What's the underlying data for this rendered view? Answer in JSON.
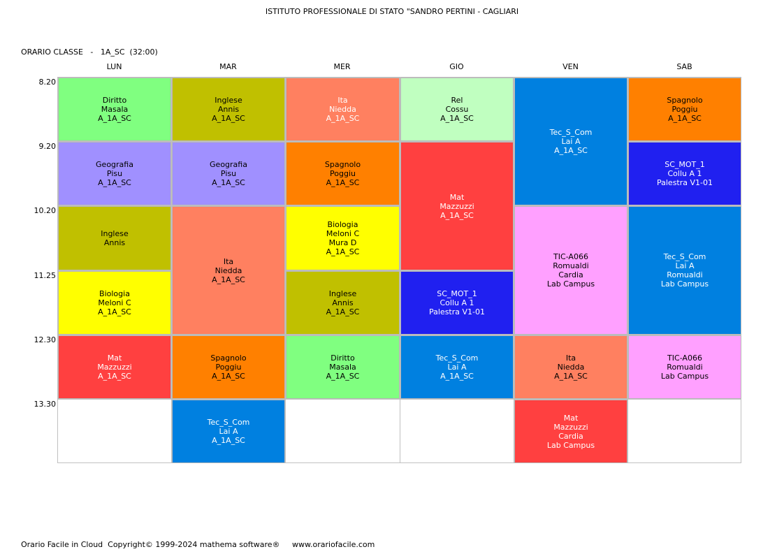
{
  "header": {
    "school": "ISTITUTO PROFESSIONALE DI STATO \"SANDRO PERTINI - CAGLIARI",
    "class_line": "ORARIO CLASSE   -   1A_SC  (32:00)"
  },
  "days": [
    "LUN",
    "MAR",
    "MER",
    "GIO",
    "VEN",
    "SAB"
  ],
  "times": [
    "8.20",
    "9.20",
    "10.20",
    "11.25",
    "12.30",
    "13.30"
  ],
  "colors": {
    "green": "#80ff80",
    "olive": "#c0c000",
    "salmon": "#ff8060",
    "lightgreen": "#c0ffc0",
    "blue": "#0080e0",
    "orange": "#ff8000",
    "lavender": "#a090ff",
    "red": "#ff4040",
    "navy": "#2020f0",
    "yellow": "#ffff00",
    "pink": "#ffa0ff"
  },
  "lessons": [
    {
      "day": 0,
      "start": 0,
      "span": 1,
      "color": "green",
      "lines": [
        "Diritto",
        "Masala",
        "A_1A_SC"
      ]
    },
    {
      "day": 0,
      "start": 1,
      "span": 1,
      "color": "lavender",
      "lines": [
        "Geografia",
        "Pisu",
        "A_1A_SC"
      ]
    },
    {
      "day": 0,
      "start": 2,
      "span": 1,
      "color": "olive",
      "lines": [
        "Inglese",
        "Annis"
      ]
    },
    {
      "day": 0,
      "start": 3,
      "span": 1,
      "color": "yellow",
      "lines": [
        "Biologia",
        "Meloni C",
        "A_1A_SC"
      ]
    },
    {
      "day": 0,
      "start": 4,
      "span": 1,
      "color": "red",
      "white": true,
      "lines": [
        "Mat",
        "Mazzuzzi",
        "A_1A_SC"
      ]
    },
    {
      "day": 1,
      "start": 0,
      "span": 1,
      "color": "olive",
      "lines": [
        "Inglese",
        "Annis",
        "A_1A_SC"
      ]
    },
    {
      "day": 1,
      "start": 1,
      "span": 1,
      "color": "lavender",
      "lines": [
        "Geografia",
        "Pisu",
        "A_1A_SC"
      ]
    },
    {
      "day": 1,
      "start": 2,
      "span": 2,
      "color": "salmon",
      "lines": [
        "Ita",
        "Niedda",
        "A_1A_SC"
      ]
    },
    {
      "day": 1,
      "start": 4,
      "span": 1,
      "color": "orange",
      "lines": [
        "Spagnolo",
        "Poggiu",
        "A_1A_SC"
      ]
    },
    {
      "day": 1,
      "start": 5,
      "span": 1,
      "color": "blue",
      "white": true,
      "lines": [
        "Tec_S_Com",
        "Lai A",
        "A_1A_SC"
      ]
    },
    {
      "day": 2,
      "start": 0,
      "span": 1,
      "color": "salmon",
      "white": true,
      "lines": [
        "Ita",
        "Niedda",
        "A_1A_SC"
      ]
    },
    {
      "day": 2,
      "start": 1,
      "span": 1,
      "color": "orange",
      "lines": [
        "Spagnolo",
        "Poggiu",
        "A_1A_SC"
      ]
    },
    {
      "day": 2,
      "start": 2,
      "span": 1,
      "color": "yellow",
      "lines": [
        "Biologia",
        "Meloni C",
        "Mura D",
        "A_1A_SC"
      ]
    },
    {
      "day": 2,
      "start": 3,
      "span": 1,
      "color": "olive",
      "lines": [
        "Inglese",
        "Annis",
        "A_1A_SC"
      ]
    },
    {
      "day": 2,
      "start": 4,
      "span": 1,
      "color": "green",
      "lines": [
        "Diritto",
        "Masala",
        "A_1A_SC"
      ]
    },
    {
      "day": 3,
      "start": 0,
      "span": 1,
      "color": "lightgreen",
      "lines": [
        "Rel",
        "Cossu",
        "A_1A_SC"
      ]
    },
    {
      "day": 3,
      "start": 1,
      "span": 2,
      "color": "red",
      "white": true,
      "lines": [
        "Mat",
        "Mazzuzzi",
        "A_1A_SC"
      ]
    },
    {
      "day": 3,
      "start": 3,
      "span": 1,
      "color": "navy",
      "white": true,
      "lines": [
        "SC_MOT_1",
        "Collu A 1",
        "Palestra V1-01"
      ]
    },
    {
      "day": 3,
      "start": 4,
      "span": 1,
      "color": "blue",
      "white": true,
      "lines": [
        "Tec_S_Com",
        "Lai A",
        "A_1A_SC"
      ]
    },
    {
      "day": 4,
      "start": 0,
      "span": 2,
      "color": "blue",
      "white": true,
      "lines": [
        "Tec_S_Com",
        "Lai A",
        "A_1A_SC"
      ]
    },
    {
      "day": 4,
      "start": 2,
      "span": 2,
      "color": "pink",
      "lines": [
        "TIC-A066",
        "Romualdi",
        "Cardia",
        "Lab Campus"
      ]
    },
    {
      "day": 4,
      "start": 4,
      "span": 1,
      "color": "salmon",
      "lines": [
        "Ita",
        "Niedda",
        "A_1A_SC"
      ]
    },
    {
      "day": 4,
      "start": 5,
      "span": 1,
      "color": "red",
      "white": true,
      "lines": [
        "Mat",
        "Mazzuzzi",
        "Cardia",
        "Lab Campus"
      ]
    },
    {
      "day": 5,
      "start": 0,
      "span": 1,
      "color": "orange",
      "lines": [
        "Spagnolo",
        "Poggiu",
        "A_1A_SC"
      ]
    },
    {
      "day": 5,
      "start": 1,
      "span": 1,
      "color": "navy",
      "white": true,
      "lines": [
        "SC_MOT_1",
        "Collu A 1",
        "Palestra V1-01"
      ]
    },
    {
      "day": 5,
      "start": 2,
      "span": 2,
      "color": "blue",
      "white": true,
      "lines": [
        "Tec_S_Com",
        "Lai A",
        "Romualdi",
        "Lab Campus"
      ]
    },
    {
      "day": 5,
      "start": 4,
      "span": 1,
      "color": "pink",
      "lines": [
        "TIC-A066",
        "Romualdi",
        "Lab Campus"
      ]
    }
  ],
  "footer": "Orario Facile in Cloud  Copyright© 1999-2024 mathema software®     www.orariofacile.com"
}
